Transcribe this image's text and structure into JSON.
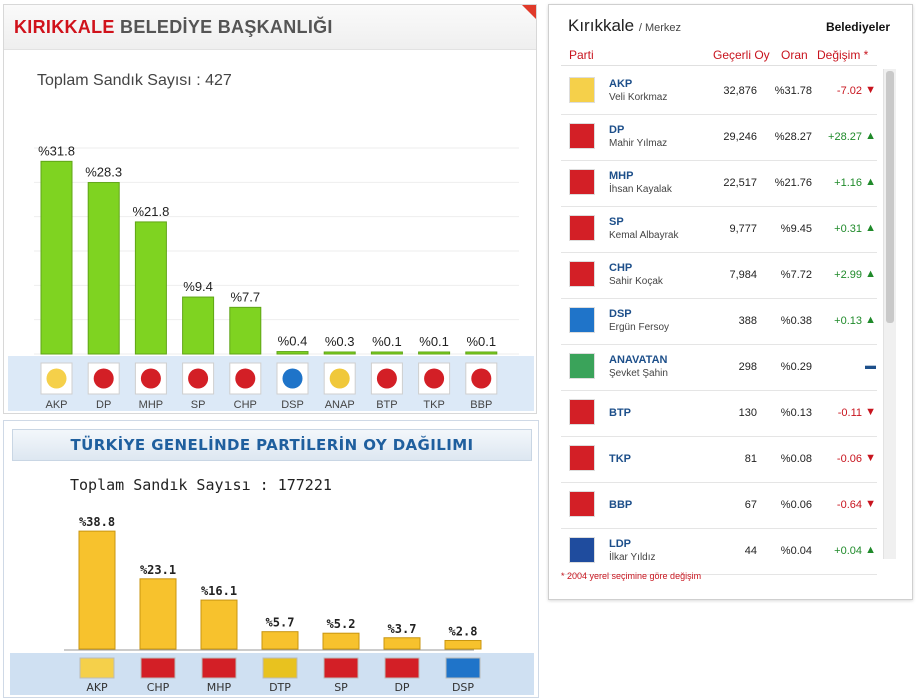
{
  "panel1": {
    "title_red": "KIRIKKALE",
    "title_rest": "BELEDİYE BAŞKANLIĞI",
    "count_label": "Toplam Sandık Sayısı : 427",
    "chart_data": {
      "type": "bar",
      "categories": [
        "AKP",
        "DP",
        "MHP",
        "SP",
        "CHP",
        "DSP",
        "ANAP",
        "BTP",
        "TKP",
        "BBP"
      ],
      "values": [
        31.8,
        28.3,
        21.8,
        9.4,
        7.7,
        0.4,
        0.3,
        0.1,
        0.1,
        0.1
      ],
      "value_labels": [
        "%31.8",
        "%28.3",
        "%21.8",
        "%9.4",
        "%7.7",
        "%0.4",
        "%0.3",
        "%0.1",
        "%0.1",
        "%0.1"
      ],
      "ylim": [
        0,
        34
      ],
      "bar_color": "#7fd321"
    }
  },
  "panel2": {
    "title": "TÜRKİYE GENELİNDE PARTİLERİN OY DAĞILIMI",
    "count_label": "Toplam Sandık Sayısı : 177221",
    "chart_data": {
      "type": "bar",
      "categories": [
        "AKP",
        "CHP",
        "MHP",
        "DTP",
        "SP",
        "DP",
        "DSP"
      ],
      "values": [
        38.8,
        23.1,
        16.1,
        5.7,
        5.2,
        3.7,
        2.8
      ],
      "value_labels": [
        "%38.8",
        "%23.1",
        "%16.1",
        "%5.7",
        "%5.2",
        "%3.7",
        "%2.8"
      ],
      "ylim": [
        0,
        42
      ],
      "bar_color": "#f7c22d"
    }
  },
  "results": {
    "city": "Kırıkkale",
    "district": "/ Merkez",
    "tab": "Belediyeler",
    "headers": {
      "party": "Parti",
      "votes": "Geçerli Oy",
      "ratio": "Oran",
      "change": "Değişim *"
    },
    "rows": [
      {
        "party": "AKP",
        "candidate": "Veli Korkmaz",
        "votes": "32,876",
        "ratio": "%31.78",
        "change": "-7.02",
        "trend": "down",
        "logo": "akp-logo"
      },
      {
        "party": "DP",
        "candidate": "Mahir Yılmaz",
        "votes": "29,246",
        "ratio": "%28.27",
        "change": "+28.27",
        "trend": "up",
        "logo": "dp-logo"
      },
      {
        "party": "MHP",
        "candidate": "İhsan Kayalak",
        "votes": "22,517",
        "ratio": "%21.76",
        "change": "+1.16",
        "trend": "up",
        "logo": "mhp-logo"
      },
      {
        "party": "SP",
        "candidate": "Kemal Albayrak",
        "votes": "9,777",
        "ratio": "%9.45",
        "change": "+0.31",
        "trend": "up",
        "logo": "sp-logo"
      },
      {
        "party": "CHP",
        "candidate": "Sahir Koçak",
        "votes": "7,984",
        "ratio": "%7.72",
        "change": "+2.99",
        "trend": "up",
        "logo": "chp-logo"
      },
      {
        "party": "DSP",
        "candidate": "Ergün Fersoy",
        "votes": "388",
        "ratio": "%0.38",
        "change": "+0.13",
        "trend": "up",
        "logo": "dsp-logo"
      },
      {
        "party": "ANAVATAN",
        "candidate": "Şevket Şahin",
        "votes": "298",
        "ratio": "%0.29",
        "change": "",
        "trend": "flat",
        "logo": "anavatan-logo"
      },
      {
        "party": "BTP",
        "candidate": "",
        "votes": "130",
        "ratio": "%0.13",
        "change": "-0.11",
        "trend": "down",
        "logo": "btp-logo"
      },
      {
        "party": "TKP",
        "candidate": "",
        "votes": "81",
        "ratio": "%0.08",
        "change": "-0.06",
        "trend": "down",
        "logo": "tkp-logo"
      },
      {
        "party": "BBP",
        "candidate": "",
        "votes": "67",
        "ratio": "%0.06",
        "change": "-0.64",
        "trend": "down",
        "logo": "bbp-logo"
      },
      {
        "party": "LDP",
        "candidate": "İlkar Yıldız",
        "votes": "44",
        "ratio": "%0.04",
        "change": "+0.04",
        "trend": "up",
        "logo": "ldp-logo"
      }
    ],
    "footnote": "* 2004 yerel seçimine göre değişim"
  }
}
